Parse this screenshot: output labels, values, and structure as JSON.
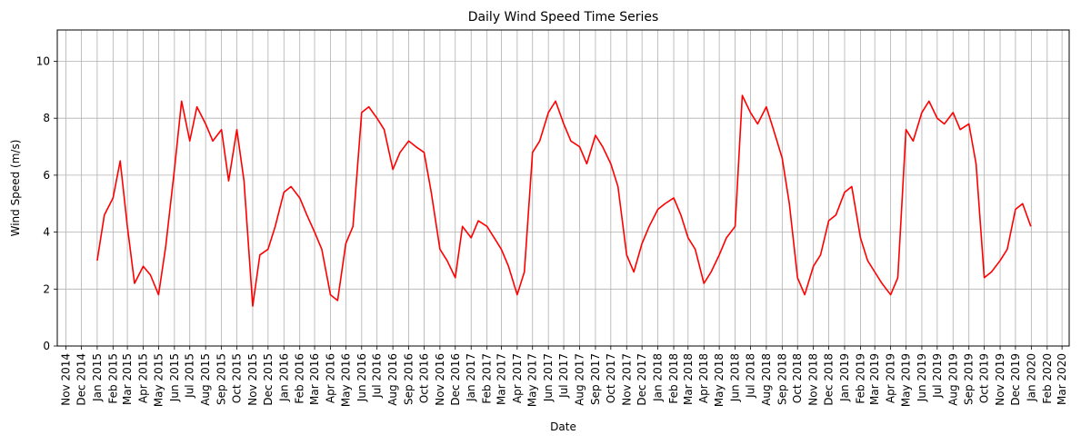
{
  "chart_data": {
    "type": "line",
    "title": "Daily Wind Speed Time Series",
    "xlabel": "Date",
    "ylabel": "Wind Speed (m/s)",
    "xlim": [
      "2014-10-15",
      "2020-03-15"
    ],
    "ylim": [
      0,
      11.1
    ],
    "grid": true,
    "x_ticks": [
      "Nov 2014",
      "Dec 2014",
      "Jan 2015",
      "Feb 2015",
      "Mar 2015",
      "Apr 2015",
      "May 2015",
      "Jun 2015",
      "Jul 2015",
      "Aug 2015",
      "Sep 2015",
      "Oct 2015",
      "Nov 2015",
      "Dec 2015",
      "Jan 2016",
      "Feb 2016",
      "Mar 2016",
      "Apr 2016",
      "May 2016",
      "Jun 2016",
      "Jul 2016",
      "Aug 2016",
      "Sep 2016",
      "Oct 2016",
      "Nov 2016",
      "Dec 2016",
      "Jan 2017",
      "Feb 2017",
      "Mar 2017",
      "Apr 2017",
      "May 2017",
      "Jun 2017",
      "Jul 2017",
      "Aug 2017",
      "Sep 2017",
      "Oct 2017",
      "Nov 2017",
      "Dec 2017",
      "Jan 2018",
      "Feb 2018",
      "Mar 2018",
      "Apr 2018",
      "May 2018",
      "Jun 2018",
      "Jul 2018",
      "Aug 2018",
      "Sep 2018",
      "Oct 2018",
      "Nov 2018",
      "Dec 2018",
      "Jan 2019",
      "Feb 2019",
      "Mar 2019",
      "Apr 2019",
      "May 2019",
      "Jun 2019",
      "Jul 2019",
      "Aug 2019",
      "Sep 2019",
      "Oct 2019",
      "Nov 2019",
      "Dec 2019",
      "Jan 2020",
      "Feb 2020",
      "Mar 2020"
    ],
    "y_ticks": [
      0,
      2,
      4,
      6,
      8,
      10
    ],
    "line_color": "#ff0000",
    "series": [
      {
        "x": [
          "2015-01-01",
          "2015-01-15",
          "2015-02-01",
          "2015-02-15",
          "2015-03-01",
          "2015-03-15",
          "2015-04-01",
          "2015-04-15",
          "2015-05-01",
          "2015-05-15",
          "2015-06-01",
          "2015-06-15",
          "2015-07-01",
          "2015-07-15",
          "2015-08-01",
          "2015-08-15",
          "2015-09-01",
          "2015-09-15",
          "2015-10-01",
          "2015-10-15",
          "2015-11-01",
          "2015-11-15",
          "2015-12-01",
          "2015-12-15",
          "2016-01-01",
          "2016-01-15",
          "2016-02-01",
          "2016-02-15",
          "2016-03-01",
          "2016-03-15",
          "2016-04-01",
          "2016-04-15",
          "2016-05-01",
          "2016-05-15",
          "2016-06-01",
          "2016-06-15",
          "2016-07-01",
          "2016-07-15",
          "2016-08-01",
          "2016-08-15",
          "2016-09-01",
          "2016-09-15",
          "2016-10-01",
          "2016-10-15",
          "2016-11-01",
          "2016-11-15",
          "2016-12-01",
          "2016-12-15",
          "2017-01-01",
          "2017-01-15",
          "2017-02-01",
          "2017-02-15",
          "2017-03-01",
          "2017-03-15",
          "2017-04-01",
          "2017-04-15",
          "2017-05-01",
          "2017-05-15",
          "2017-06-01",
          "2017-06-15",
          "2017-07-01",
          "2017-07-15",
          "2017-08-01",
          "2017-08-15",
          "2017-09-01",
          "2017-09-15",
          "2017-10-01",
          "2017-10-15",
          "2017-11-01",
          "2017-11-15",
          "2017-12-01",
          "2017-12-15",
          "2018-01-01",
          "2018-01-15",
          "2018-02-01",
          "2018-02-15",
          "2018-03-01",
          "2018-03-15",
          "2018-04-01",
          "2018-04-15",
          "2018-05-01",
          "2018-05-15",
          "2018-06-01",
          "2018-06-15",
          "2018-07-01",
          "2018-07-15",
          "2018-08-01",
          "2018-08-15",
          "2018-09-01",
          "2018-09-15",
          "2018-10-01",
          "2018-10-15",
          "2018-11-01",
          "2018-11-15",
          "2018-12-01",
          "2018-12-15",
          "2019-01-01",
          "2019-01-15",
          "2019-02-01",
          "2019-02-15",
          "2019-03-01",
          "2019-03-15",
          "2019-04-01",
          "2019-04-15",
          "2019-05-01",
          "2019-05-15",
          "2019-06-01",
          "2019-06-15",
          "2019-07-01",
          "2019-07-15",
          "2019-08-01",
          "2019-08-15",
          "2019-09-01",
          "2019-09-15",
          "2019-10-01",
          "2019-10-15",
          "2019-11-01",
          "2019-11-15",
          "2019-12-01",
          "2019-12-15",
          "2019-12-31"
        ],
        "y": [
          3.0,
          4.6,
          5.2,
          6.5,
          4.2,
          2.2,
          2.8,
          2.5,
          1.8,
          3.5,
          6.2,
          8.6,
          7.2,
          8.4,
          7.8,
          7.2,
          7.6,
          5.8,
          7.6,
          5.8,
          1.4,
          3.2,
          3.4,
          4.2,
          5.4,
          5.6,
          5.2,
          4.6,
          4.0,
          3.4,
          1.8,
          1.6,
          3.6,
          4.2,
          8.2,
          8.4,
          8.0,
          7.6,
          6.2,
          6.8,
          7.2,
          7.0,
          6.8,
          5.4,
          3.4,
          3.0,
          2.4,
          4.2,
          3.8,
          4.4,
          4.2,
          3.8,
          3.4,
          2.8,
          1.8,
          2.6,
          6.8,
          7.2,
          8.2,
          8.6,
          7.8,
          7.2,
          7.0,
          6.4,
          7.4,
          7.0,
          6.4,
          5.6,
          3.2,
          2.6,
          3.6,
          4.2,
          4.8,
          5.0,
          5.2,
          4.6,
          3.8,
          3.4,
          2.2,
          2.6,
          3.2,
          3.8,
          4.2,
          8.8,
          8.2,
          7.8,
          8.4,
          7.6,
          6.6,
          5.0,
          2.4,
          1.8,
          2.8,
          3.2,
          4.4,
          4.6,
          5.4,
          5.6,
          3.8,
          3.0,
          2.6,
          2.2,
          1.8,
          2.4,
          7.6,
          7.2,
          8.2,
          8.6,
          8.0,
          7.8,
          8.2,
          7.6,
          7.8,
          6.4,
          2.4,
          2.6,
          3.0,
          3.4,
          4.8,
          5.0,
          4.2
        ]
      }
    ]
  }
}
